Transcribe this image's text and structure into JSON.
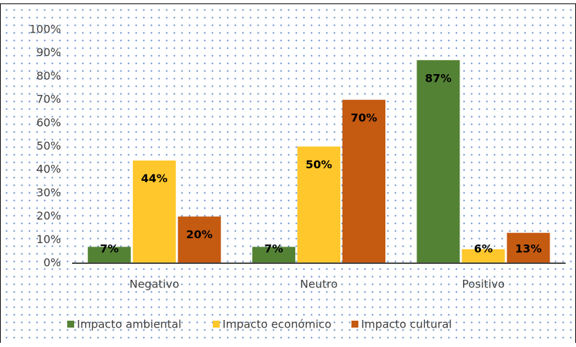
{
  "chart_data": {
    "type": "bar",
    "categories": [
      "Negativo",
      "Neutro",
      "Positivo"
    ],
    "series": [
      {
        "name": "Impacto ambiental",
        "color": "#548235",
        "values": [
          7,
          7,
          87
        ],
        "value_labels": [
          "7%",
          "7%",
          "87%"
        ]
      },
      {
        "name": "Impacto económico",
        "color": "#ffc72c",
        "values": [
          44,
          50,
          6
        ],
        "value_labels": [
          "44%",
          "50%",
          "6%"
        ]
      },
      {
        "name": "Impacto cultural",
        "color": "#c55a11",
        "values": [
          20,
          70,
          13
        ],
        "value_labels": [
          "20%",
          "70%",
          "13%"
        ]
      }
    ],
    "ylim": [
      0,
      100
    ],
    "yticks": [
      {
        "value": 0,
        "label": "0%"
      },
      {
        "value": 10,
        "label": "10%"
      },
      {
        "value": 20,
        "label": "20%"
      },
      {
        "value": 30,
        "label": "30%"
      },
      {
        "value": 40,
        "label": "40%"
      },
      {
        "value": 50,
        "label": "50%"
      },
      {
        "value": 60,
        "label": "60%"
      },
      {
        "value": 70,
        "label": "70%"
      },
      {
        "value": 80,
        "label": "80%"
      },
      {
        "value": 90,
        "label": "90%"
      },
      {
        "value": 100,
        "label": "100%"
      }
    ],
    "legend": "bottom"
  }
}
